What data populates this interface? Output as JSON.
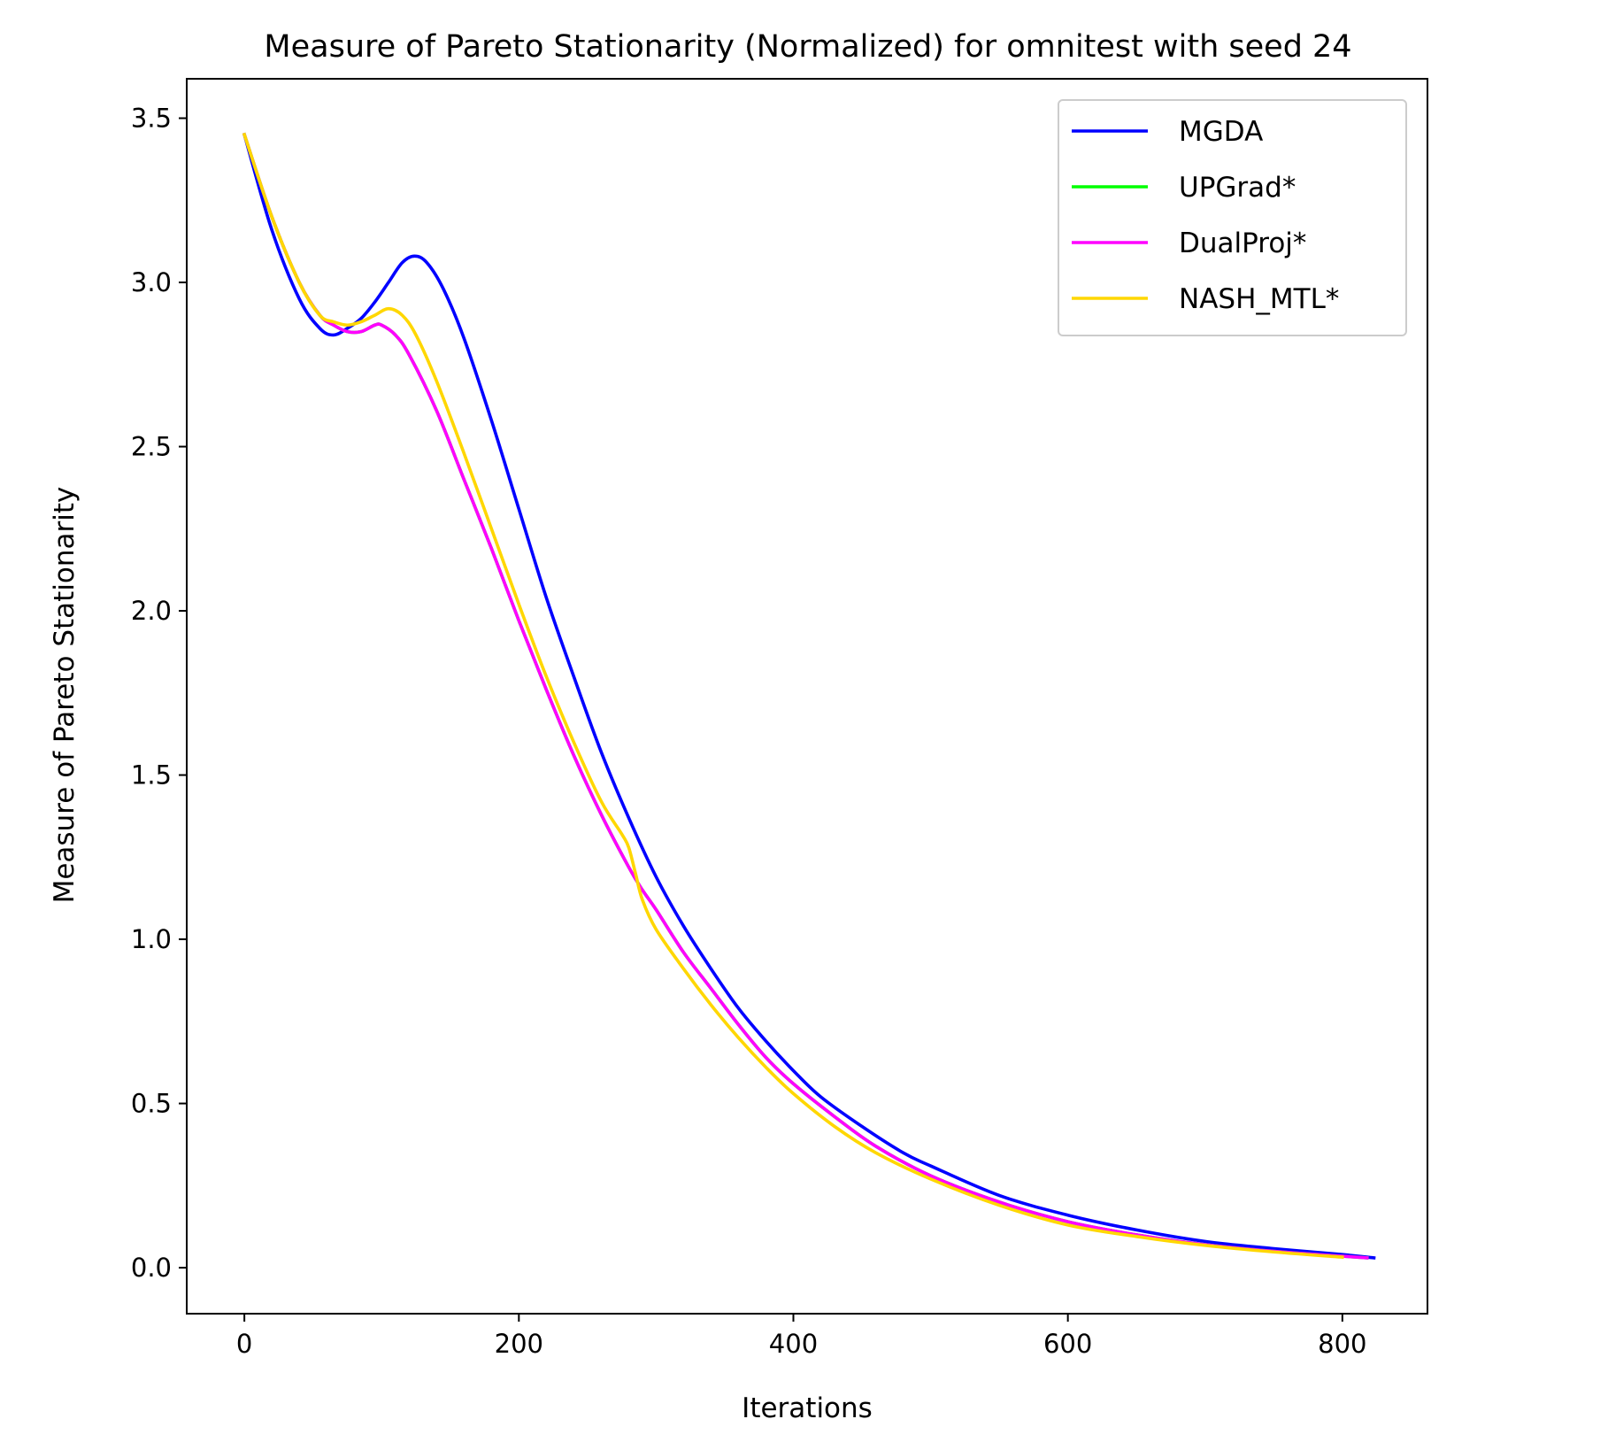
{
  "chart_data": {
    "type": "line",
    "title": "Measure of Pareto Stationarity (Normalized) for omnitest with seed 24",
    "xlabel": "Iterations",
    "ylabel": "Measure of Pareto Stationarity",
    "xlim": [
      -42,
      862
    ],
    "ylim": [
      -0.14,
      3.62
    ],
    "xticks": [
      0,
      200,
      400,
      600,
      800
    ],
    "xtick_labels": [
      "0",
      "200",
      "400",
      "600",
      "800"
    ],
    "yticks": [
      0.0,
      0.5,
      1.0,
      1.5,
      2.0,
      2.5,
      3.0,
      3.5
    ],
    "ytick_labels": [
      "0.0",
      "0.5",
      "1.0",
      "1.5",
      "2.0",
      "2.5",
      "3.0",
      "3.5"
    ],
    "grid": false,
    "legend_position": "top-right",
    "series": [
      {
        "name": "MGDA",
        "color": "#0000ff",
        "x": [
          0,
          20,
          40,
          55,
          65,
          75,
          85,
          95,
          105,
          115,
          124,
          133,
          145,
          160,
          180,
          200,
          220,
          240,
          260,
          280,
          300,
          320,
          340,
          360,
          380,
          400,
          420,
          450,
          480,
          500,
          550,
          600,
          650,
          700,
          750,
          800,
          823
        ],
        "y": [
          3.45,
          3.16,
          2.95,
          2.86,
          2.84,
          2.86,
          2.89,
          2.94,
          3.0,
          3.06,
          3.08,
          3.06,
          2.98,
          2.83,
          2.58,
          2.31,
          2.04,
          1.8,
          1.57,
          1.37,
          1.19,
          1.04,
          0.91,
          0.79,
          0.69,
          0.6,
          0.52,
          0.43,
          0.35,
          0.31,
          0.22,
          0.16,
          0.115,
          0.08,
          0.058,
          0.04,
          0.03
        ]
      },
      {
        "name": "UPGrad*",
        "color": "#00ff00",
        "x": [
          0,
          20,
          40,
          55,
          65,
          75,
          85,
          95,
          100,
          110,
          120,
          140,
          160,
          180,
          200,
          220,
          240,
          260,
          280,
          290,
          300,
          320,
          340,
          360,
          380,
          400,
          430,
          460,
          500,
          550,
          600,
          650,
          700,
          750,
          800,
          818
        ],
        "y": [
          3.45,
          3.2,
          3.0,
          2.9,
          2.87,
          2.85,
          2.85,
          2.87,
          2.87,
          2.84,
          2.78,
          2.61,
          2.4,
          2.19,
          1.97,
          1.76,
          1.56,
          1.38,
          1.22,
          1.15,
          1.09,
          0.96,
          0.85,
          0.74,
          0.64,
          0.56,
          0.46,
          0.37,
          0.28,
          0.2,
          0.14,
          0.1,
          0.07,
          0.05,
          0.035,
          0.03
        ]
      },
      {
        "name": "DualProj*",
        "color": "#ff00ff",
        "x": [
          0,
          20,
          40,
          55,
          65,
          75,
          85,
          95,
          100,
          110,
          120,
          140,
          160,
          180,
          200,
          220,
          240,
          260,
          280,
          290,
          300,
          320,
          340,
          360,
          380,
          400,
          430,
          460,
          500,
          550,
          600,
          650,
          700,
          750,
          800,
          818
        ],
        "y": [
          3.45,
          3.2,
          3.0,
          2.9,
          2.87,
          2.85,
          2.85,
          2.87,
          2.87,
          2.84,
          2.78,
          2.61,
          2.4,
          2.19,
          1.97,
          1.76,
          1.56,
          1.38,
          1.22,
          1.15,
          1.09,
          0.96,
          0.85,
          0.74,
          0.64,
          0.56,
          0.46,
          0.37,
          0.28,
          0.2,
          0.14,
          0.1,
          0.07,
          0.05,
          0.035,
          0.03
        ]
      },
      {
        "name": "NASH_MTL*",
        "color": "#ffd700",
        "x": [
          0,
          20,
          40,
          55,
          65,
          75,
          85,
          95,
          105,
          115,
          125,
          140,
          160,
          180,
          200,
          220,
          240,
          260,
          275,
          280,
          285,
          290,
          300,
          320,
          340,
          360,
          380,
          400,
          430,
          460,
          500,
          550,
          600,
          650,
          700,
          750,
          800
        ],
        "y": [
          3.45,
          3.2,
          3.0,
          2.9,
          2.88,
          2.87,
          2.88,
          2.9,
          2.92,
          2.9,
          2.84,
          2.7,
          2.48,
          2.25,
          2.02,
          1.8,
          1.6,
          1.42,
          1.32,
          1.28,
          1.2,
          1.12,
          1.03,
          0.91,
          0.8,
          0.7,
          0.61,
          0.53,
          0.43,
          0.35,
          0.27,
          0.19,
          0.13,
          0.095,
          0.068,
          0.048,
          0.032
        ]
      }
    ]
  }
}
